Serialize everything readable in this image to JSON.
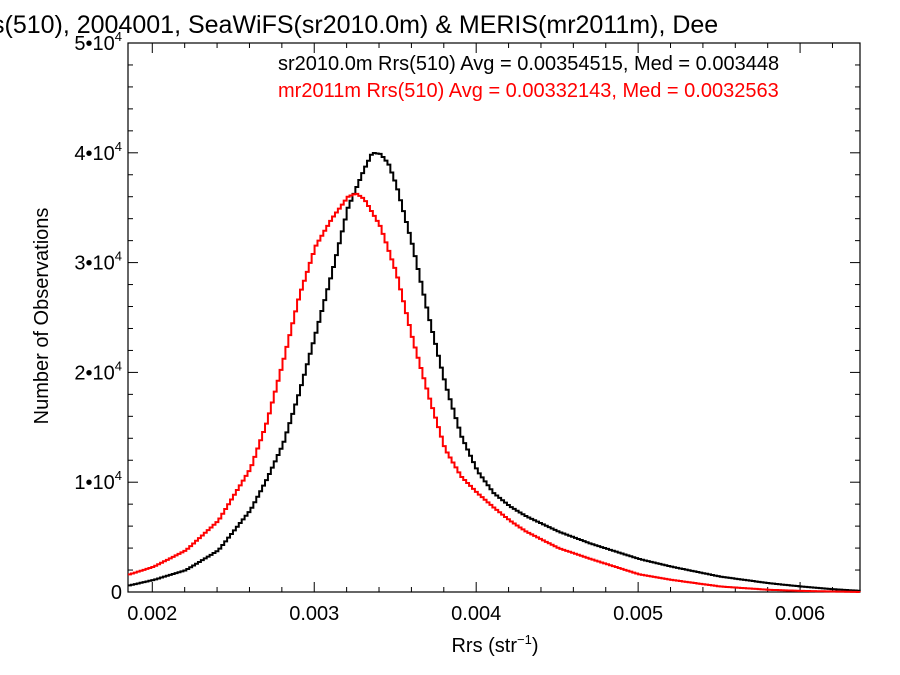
{
  "chart_data": {
    "type": "line",
    "title": "s(510), 2004001, SeaWiFS(sr2010.0m) & MERIS(mr2011m), Dee",
    "xlabel": "Rrs (str",
    "xlabel_sup": "−1",
    "xlabel_close": ")",
    "ylabel": "Number of Observations",
    "xlim": [
      0.00185,
      0.00637
    ],
    "ylim": [
      0,
      50000
    ],
    "xticks": [
      {
        "value": 0.002,
        "label": "0.002"
      },
      {
        "value": 0.003,
        "label": "0.003"
      },
      {
        "value": 0.004,
        "label": "0.004"
      },
      {
        "value": 0.005,
        "label": "0.005"
      },
      {
        "value": 0.006,
        "label": "0.006"
      }
    ],
    "yticks": [
      {
        "value": 0,
        "label": "0",
        "sup": ""
      },
      {
        "value": 10000,
        "label": "1•10",
        "sup": "4"
      },
      {
        "value": 20000,
        "label": "2•10",
        "sup": "4"
      },
      {
        "value": 30000,
        "label": "3•10",
        "sup": "4"
      },
      {
        "value": 40000,
        "label": "4•10",
        "sup": "4"
      },
      {
        "value": 50000,
        "label": "5•10",
        "sup": "4"
      }
    ],
    "annotations": [
      {
        "text": "sr2010.0m Rrs(510) Avg = 0.00354515, Med = 0.003448",
        "color": "#000000"
      },
      {
        "text": "mr2011m Rrs(510) Avg = 0.00332143, Med = 0.0032563",
        "color": "#ff0000"
      }
    ],
    "series": [
      {
        "color": "#000000",
        "x": [
          0.00185,
          0.002,
          0.0022,
          0.0024,
          0.0026,
          0.0027,
          0.0028,
          0.0029,
          0.003,
          0.0031,
          0.0032,
          0.0033,
          0.00335,
          0.0034,
          0.00345,
          0.0035,
          0.0036,
          0.0037,
          0.0038,
          0.0039,
          0.004,
          0.0041,
          0.0042,
          0.0043,
          0.0045,
          0.0047,
          0.005,
          0.0052,
          0.0055,
          0.0058,
          0.006,
          0.0062,
          0.00637
        ],
        "y": [
          600,
          1100,
          2000,
          3800,
          7500,
          10300,
          13500,
          18200,
          23500,
          29000,
          35000,
          38500,
          40000,
          39900,
          39000,
          37000,
          31500,
          25000,
          19000,
          14200,
          11000,
          9000,
          7800,
          6900,
          5500,
          4400,
          3000,
          2300,
          1400,
          800,
          500,
          250,
          100
        ]
      },
      {
        "color": "#ff0000",
        "x": [
          0.00185,
          0.002,
          0.0022,
          0.0024,
          0.0026,
          0.0027,
          0.0028,
          0.0029,
          0.003,
          0.0031,
          0.0032,
          0.00325,
          0.0033,
          0.0034,
          0.0035,
          0.0036,
          0.0037,
          0.0038,
          0.0039,
          0.004,
          0.0041,
          0.0042,
          0.0043,
          0.0045,
          0.0047,
          0.005,
          0.0052,
          0.0055,
          0.0058,
          0.006,
          0.00637
        ],
        "y": [
          1600,
          2300,
          3800,
          6500,
          11300,
          15500,
          21000,
          27000,
          31500,
          34000,
          36000,
          36300,
          35800,
          33300,
          29000,
          23000,
          17800,
          13000,
          10500,
          9000,
          7700,
          6500,
          5500,
          4000,
          3000,
          1600,
          1100,
          500,
          200,
          100,
          0
        ]
      }
    ]
  }
}
